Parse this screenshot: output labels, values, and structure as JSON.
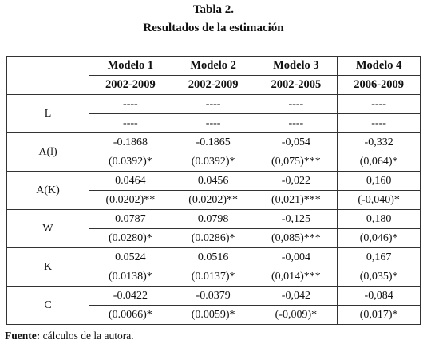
{
  "title": "Tabla 2.",
  "subtitle": "Resultados de la estimación",
  "table": {
    "models": [
      "Modelo 1",
      "Modelo 2",
      "Modelo 3",
      "Modelo 4"
    ],
    "periods": [
      "2002-2009",
      "2002-2009",
      "2002-2005",
      "2006-2009"
    ],
    "rows": [
      {
        "label": "L",
        "estimates": [
          "----",
          "----",
          "----",
          "----"
        ],
        "errors": [
          "----",
          "----",
          "----",
          "----"
        ]
      },
      {
        "label": "A(l)",
        "estimates": [
          "-0.1868",
          "-0.1865",
          "-0,054",
          "-0,332"
        ],
        "errors": [
          "(0.0392)*",
          "(0.0392)*",
          "(0,075)***",
          "(0,064)*"
        ]
      },
      {
        "label": "A(K)",
        "estimates": [
          "0.0464",
          "0.0456",
          "-0,022",
          "0,160"
        ],
        "errors": [
          "(0.0202)**",
          "(0.0202)**",
          "(0,021)***",
          "(-0,040)*"
        ]
      },
      {
        "label": "W",
        "estimates": [
          "0.0787",
          "0.0798",
          "-0,125",
          "0,180"
        ],
        "errors": [
          "(0.0280)*",
          "(0.0286)*",
          "(0,085)***",
          "(0,046)*"
        ]
      },
      {
        "label": "K",
        "estimates": [
          "0.0524",
          "0.0516",
          "-0,004",
          "0,167"
        ],
        "errors": [
          "(0.0138)*",
          "(0.0137)*",
          "(0,014)***",
          "(0,035)*"
        ]
      },
      {
        "label": "C",
        "estimates": [
          "-0.0422",
          "-0.0379",
          "-0,042",
          "-0,084"
        ],
        "errors": [
          "(0.0066)*",
          "(0.0059)*",
          "(-0,009)*",
          "(0,017)*"
        ]
      }
    ]
  },
  "footer": {
    "label": "Fuente:",
    "text": "cálculos de la autora."
  }
}
